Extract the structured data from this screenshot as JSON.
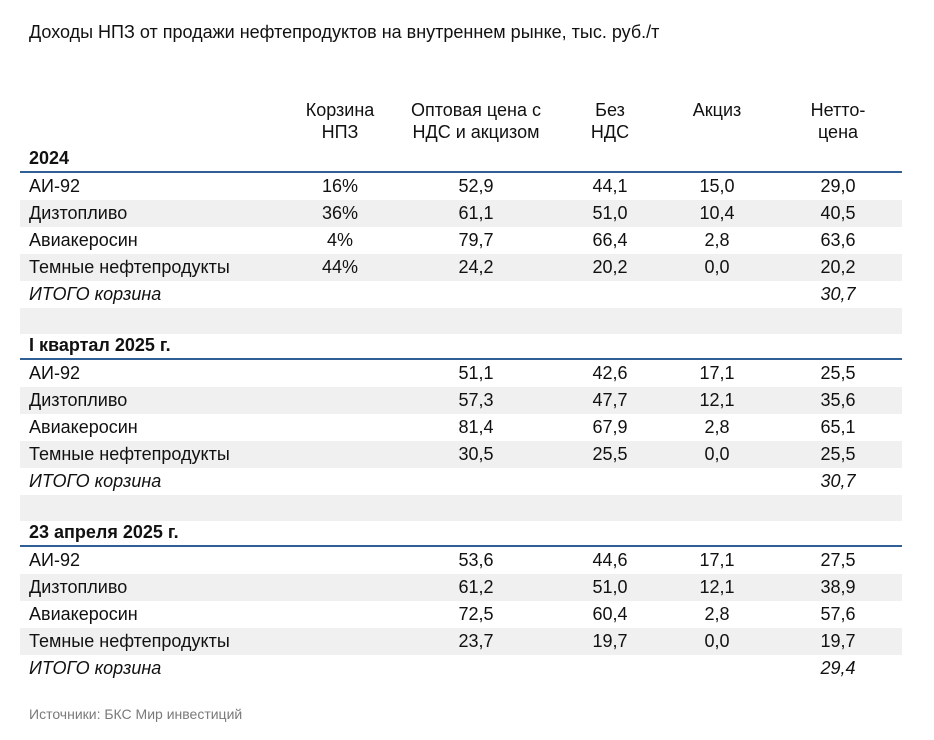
{
  "title": "Доходы НПЗ от продажи нефтепродуктов на внутреннем рынке, тыс. руб./т",
  "columns": [
    "Корзина\nНПЗ",
    "Оптовая цена с\nНДС и акцизом",
    "Без\nНДС",
    "Акциз",
    "Нетто-\nцена"
  ],
  "sections": [
    {
      "name": "2024",
      "rows": [
        {
          "label": "АИ-92",
          "basket": "16%",
          "wholesale": "52,9",
          "no_vat": "44,1",
          "excise": "15,0",
          "net": "29,0"
        },
        {
          "label": "Дизтопливо",
          "basket": "36%",
          "wholesale": "61,1",
          "no_vat": "51,0",
          "excise": "10,4",
          "net": "40,5"
        },
        {
          "label": "Авиакеросин",
          "basket": "4%",
          "wholesale": "79,7",
          "no_vat": "66,4",
          "excise": "2,8",
          "net": "63,6"
        },
        {
          "label": "Темные нефтепродукты",
          "basket": "44%",
          "wholesale": "24,2",
          "no_vat": "20,2",
          "excise": "0,0",
          "net": "20,2"
        }
      ],
      "total": {
        "label": "ИТОГО корзина",
        "net": "30,7"
      }
    },
    {
      "name": "I квартал 2025 г.",
      "rows": [
        {
          "label": "АИ-92",
          "basket": "",
          "wholesale": "51,1",
          "no_vat": "42,6",
          "excise": "17,1",
          "net": "25,5"
        },
        {
          "label": "Дизтопливо",
          "basket": "",
          "wholesale": "57,3",
          "no_vat": "47,7",
          "excise": "12,1",
          "net": "35,6"
        },
        {
          "label": "Авиакеросин",
          "basket": "",
          "wholesale": "81,4",
          "no_vat": "67,9",
          "excise": "2,8",
          "net": "65,1"
        },
        {
          "label": "Темные нефтепродукты",
          "basket": "",
          "wholesale": "30,5",
          "no_vat": "25,5",
          "excise": "0,0",
          "net": "25,5"
        }
      ],
      "total": {
        "label": "ИТОГО корзина",
        "net": "30,7"
      }
    },
    {
      "name": "23 апреля 2025 г.",
      "rows": [
        {
          "label": "АИ-92",
          "basket": "",
          "wholesale": "53,6",
          "no_vat": "44,6",
          "excise": "17,1",
          "net": "27,5"
        },
        {
          "label": "Дизтопливо",
          "basket": "",
          "wholesale": "61,2",
          "no_vat": "51,0",
          "excise": "12,1",
          "net": "38,9"
        },
        {
          "label": "Авиакеросин",
          "basket": "",
          "wholesale": "72,5",
          "no_vat": "60,4",
          "excise": "2,8",
          "net": "57,6"
        },
        {
          "label": "Темные нефтепродукты",
          "basket": "",
          "wholesale": "23,7",
          "no_vat": "19,7",
          "excise": "0,0",
          "net": "19,7"
        }
      ],
      "total": {
        "label": "ИТОГО корзина",
        "net": "29,4"
      }
    }
  ],
  "source": "Источники: БКС Мир инвестиций"
}
